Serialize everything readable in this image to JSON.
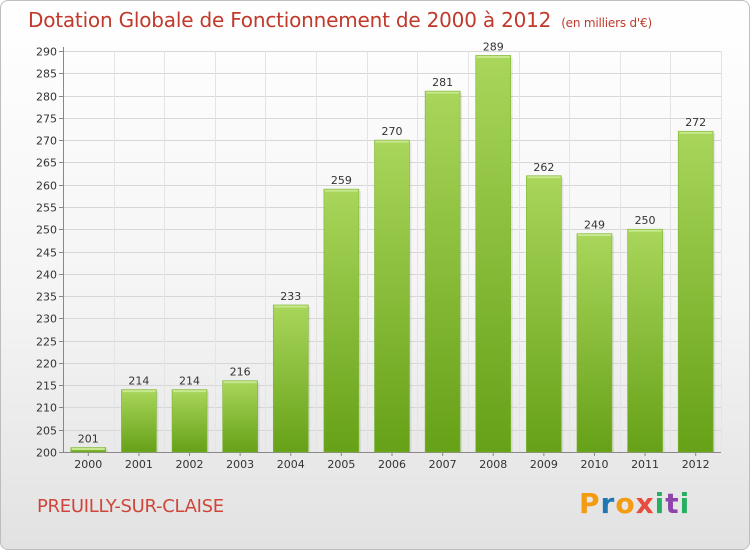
{
  "title": "Dotation Globale de Fonctionnement de 2000 à 2012",
  "subtitle": "(en milliers d'€)",
  "commune": "PREUILLY-SUR-CLAISE",
  "logo": {
    "text": "Proxiti",
    "letters": [
      "P",
      "r",
      "o",
      "x",
      "i",
      "t",
      "i"
    ],
    "colors": [
      "#f39c12",
      "#1f77b4",
      "#f39c12",
      "#e74c3c",
      "#27ae60",
      "#8e44ad",
      "#27ae60"
    ]
  },
  "colors": {
    "bar_light": "#a9d65b",
    "bar_dark": "#66a117",
    "title": "#c0392b"
  },
  "chart_data": {
    "type": "bar",
    "categories": [
      "2000",
      "2001",
      "2002",
      "2003",
      "2004",
      "2005",
      "2006",
      "2007",
      "2008",
      "2009",
      "2010",
      "2011",
      "2012"
    ],
    "values": [
      201,
      214,
      214,
      216,
      233,
      259,
      270,
      281,
      289,
      262,
      249,
      250,
      272
    ],
    "ylim": [
      200,
      290
    ],
    "yticks": [
      200,
      205,
      210,
      215,
      220,
      225,
      230,
      235,
      240,
      245,
      250,
      255,
      260,
      265,
      270,
      275,
      280,
      285,
      290
    ],
    "grid": true
  }
}
